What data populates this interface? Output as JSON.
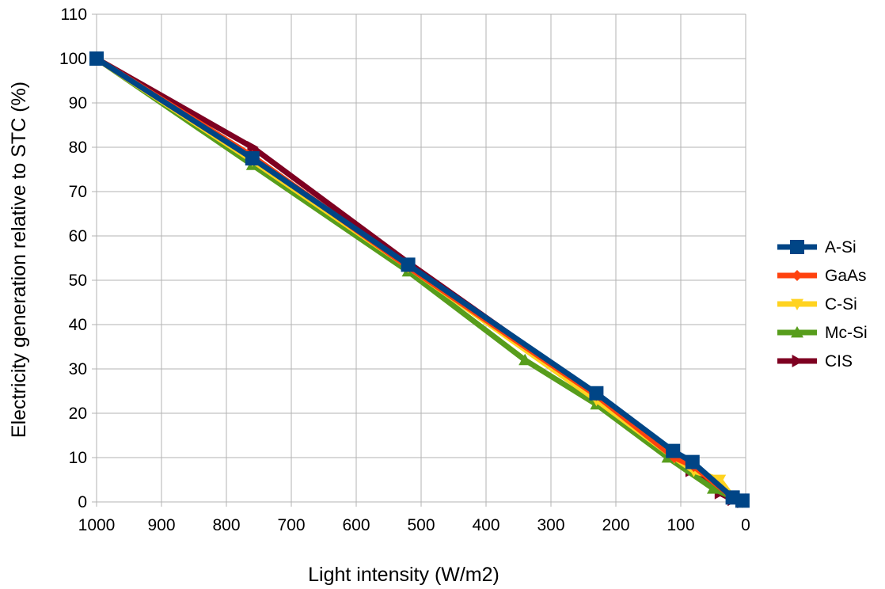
{
  "chart_data": {
    "type": "line",
    "title": "",
    "xlabel": "Light intensity (W/m2)",
    "ylabel": "Electricity generation relative to STC (%)",
    "xlim": [
      1000,
      0
    ],
    "ylim": [
      0,
      110
    ],
    "x_reversed": true,
    "x_ticks": [
      "1000",
      "900",
      "800",
      "700",
      "600",
      "500",
      "400",
      "300",
      "200",
      "100",
      "0"
    ],
    "y_ticks": [
      "0",
      "10",
      "20",
      "30",
      "40",
      "50",
      "60",
      "70",
      "80",
      "90",
      "100",
      "110"
    ],
    "grid": true,
    "legend_position": "right",
    "series": [
      {
        "name": "CIS",
        "color": "#7e0021",
        "marker": "triangle-right",
        "x": [
          1000,
          760,
          520,
          230,
          110,
          85,
          40,
          20,
          5
        ],
        "y": [
          100,
          80,
          54,
          24,
          11,
          7,
          2,
          0.5,
          0
        ]
      },
      {
        "name": "Mc-Si",
        "color": "#579d1c",
        "marker": "triangle-up",
        "x": [
          1000,
          760,
          520,
          340,
          230,
          120,
          50,
          20,
          5
        ],
        "y": [
          100,
          76,
          52,
          32,
          22,
          10,
          3,
          1,
          0
        ]
      },
      {
        "name": "C-Si",
        "color": "#ffd320",
        "marker": "triangle-down",
        "x": [
          1000,
          760,
          520,
          230,
          110,
          80,
          40,
          20,
          5
        ],
        "y": [
          100,
          77,
          53,
          23,
          10,
          7,
          5,
          1,
          0
        ]
      },
      {
        "name": "GaAs",
        "color": "#ff420e",
        "marker": "diamond",
        "x": [
          1000,
          760,
          520,
          230,
          110,
          80,
          20,
          5
        ],
        "y": [
          100,
          78,
          53,
          24,
          10,
          8,
          1,
          0
        ]
      },
      {
        "name": "A-Si",
        "color": "#004586",
        "marker": "square",
        "x": [
          1000,
          760,
          520,
          230,
          112,
          82,
          20,
          5
        ],
        "y": [
          100,
          77.5,
          53.5,
          24.5,
          11.5,
          9,
          1,
          0.3
        ]
      }
    ],
    "legend_order": [
      "A-Si",
      "GaAs",
      "C-Si",
      "Mc-Si",
      "CIS"
    ]
  }
}
